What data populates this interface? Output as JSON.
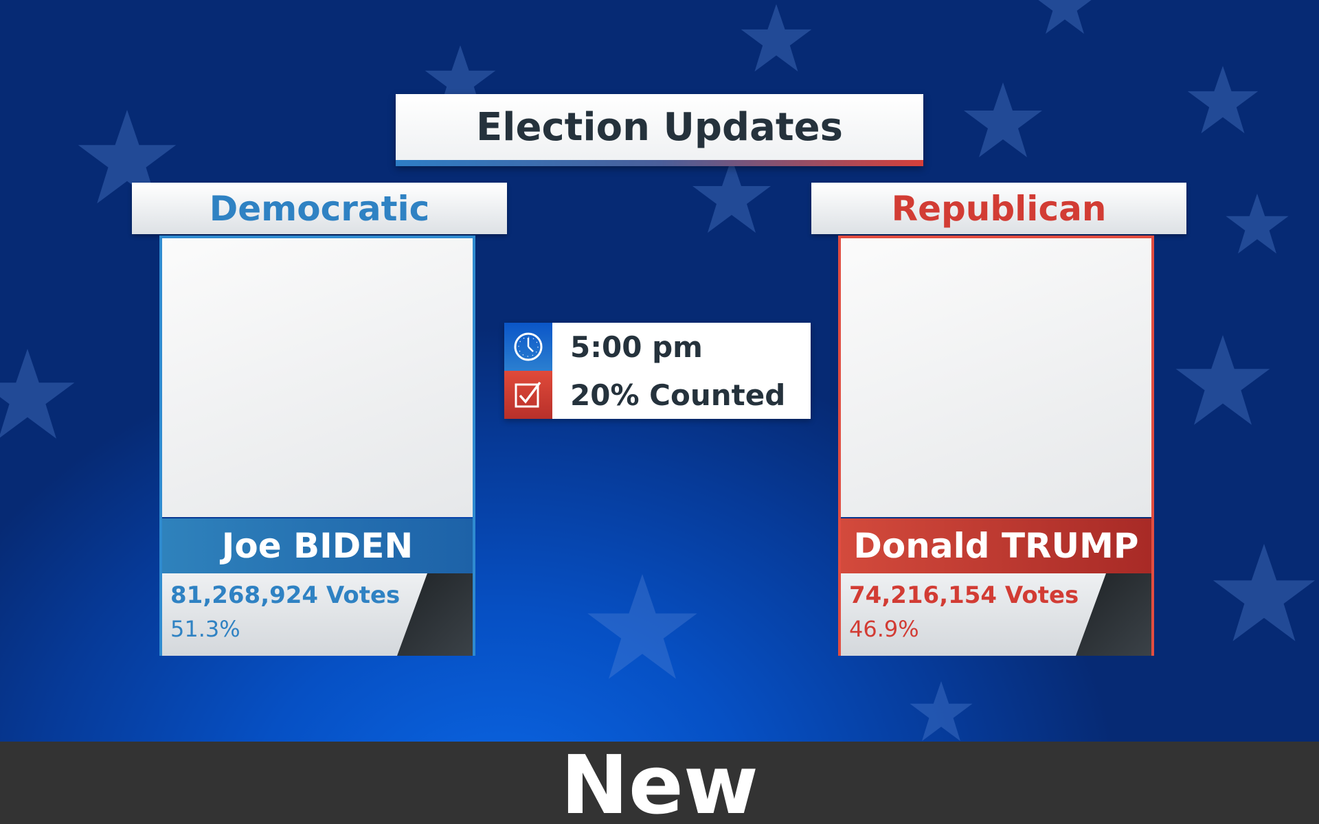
{
  "title": "Election Updates",
  "colors": {
    "democratic": "#2f82c3",
    "republican": "#d23c34",
    "background": "#0650c4",
    "bottom_bar": "#333333"
  },
  "candidates": {
    "democratic": {
      "party": "Democratic",
      "name": "Joe BIDEN",
      "votes": "81,268,924 Votes",
      "percent": "51.3%"
    },
    "republican": {
      "party": "Republican",
      "name": "Donald TRUMP",
      "votes": "74,216,154 Votes",
      "percent": "46.9%"
    }
  },
  "info": {
    "time": "5:00 pm",
    "time_icon": "clock-icon",
    "counted": "20% Counted",
    "counted_icon": "checkbox-icon"
  },
  "bottom_bar": {
    "label": "New"
  }
}
